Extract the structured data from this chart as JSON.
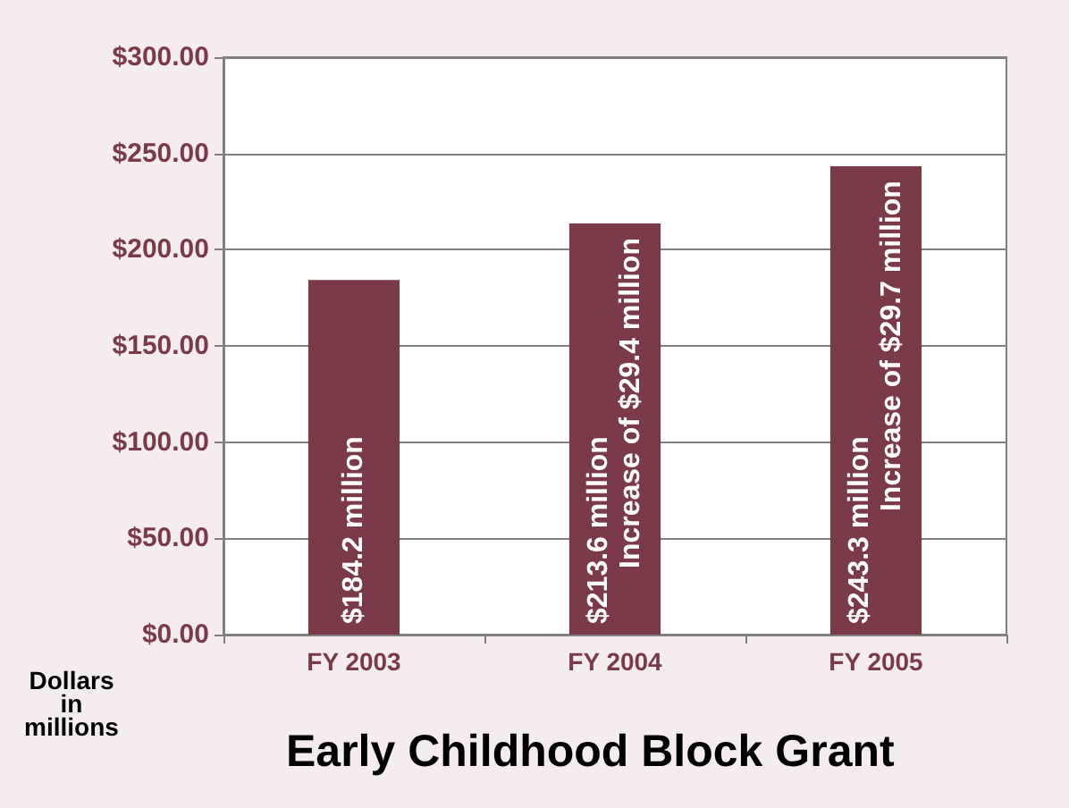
{
  "chart_data": {
    "type": "bar",
    "title": "Early Childhood Block Grant",
    "ylabel": "Dollars in millions",
    "categories": [
      "FY 2003",
      "FY 2004",
      "FY 2005"
    ],
    "values": [
      184.2,
      213.6,
      243.3
    ],
    "value_labels": [
      "$184.2 million",
      "$213.6 million",
      "$243.3 million"
    ],
    "annotations": [
      {
        "text": "Increase of $29.4 million",
        "x": "FY 2004",
        "y": 213.6
      },
      {
        "text": "Increase of $29.7 million",
        "x": "FY 2005",
        "y": 243.3
      }
    ],
    "color": "#7b3a47",
    "ylim": [
      0,
      300
    ],
    "yticks": [
      {
        "value": 0,
        "label": "$0.00"
      },
      {
        "value": 50,
        "label": "$50.00"
      },
      {
        "value": 100,
        "label": "$100.00"
      },
      {
        "value": 150,
        "label": "$150.00"
      },
      {
        "value": 200,
        "label": "$200.00"
      },
      {
        "value": 250,
        "label": "$250.00"
      },
      {
        "value": 300,
        "label": "$300.00"
      }
    ],
    "grid": "y"
  }
}
